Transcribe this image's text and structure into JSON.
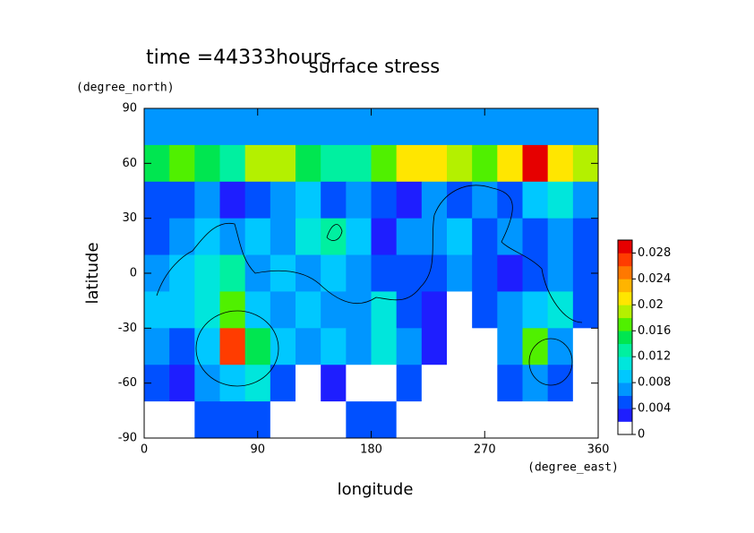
{
  "chart_data": {
    "type": "filled-contour",
    "title": "surface stress",
    "subtitle": "time =44333hours",
    "x_label": "longitude",
    "x_unit": "(degree_east)",
    "y_label": "latitude",
    "y_unit": "(degree_north)",
    "xlim": [
      0,
      360
    ],
    "xticks": [
      0,
      90,
      180,
      270,
      360
    ],
    "ylim": [
      -90,
      90
    ],
    "yticks": [
      -90,
      -60,
      -30,
      0,
      30,
      60,
      90
    ],
    "zlim": [
      0,
      0.03
    ],
    "zticks": [
      0,
      0.004,
      0.008,
      0.012,
      0.016,
      0.02,
      0.024,
      0.028
    ],
    "colors": [
      "#ffffff",
      "#1e1eff",
      "#0050ff",
      "#0096ff",
      "#00c8ff",
      "#00e6dc",
      "#00f0a0",
      "#00e650",
      "#50f000",
      "#b4f000",
      "#ffe600",
      "#ffb400",
      "#ff7800",
      "#ff3c00",
      "#e60000"
    ],
    "x": [
      10,
      30,
      50,
      70,
      90,
      110,
      130,
      150,
      170,
      190,
      210,
      230,
      250,
      270,
      290,
      310,
      330,
      350
    ],
    "y": [
      80,
      60,
      40,
      20,
      0,
      -20,
      -40,
      -60,
      -80
    ],
    "z": [
      [
        0.006,
        0.006,
        0.006,
        0.006,
        0.006,
        0.006,
        0.006,
        0.006,
        0.006,
        0.006,
        0.006,
        0.006,
        0.006,
        0.006,
        0.006,
        0.006,
        0.006,
        0.006
      ],
      [
        0.014,
        0.016,
        0.014,
        0.012,
        0.018,
        0.018,
        0.014,
        0.012,
        0.012,
        0.016,
        0.02,
        0.02,
        0.018,
        0.016,
        0.02,
        0.029,
        0.02,
        0.018
      ],
      [
        0.004,
        0.004,
        0.006,
        0.002,
        0.004,
        0.006,
        0.008,
        0.004,
        0.006,
        0.004,
        0.002,
        0.006,
        0.004,
        0.006,
        0.004,
        0.008,
        0.01,
        0.006
      ],
      [
        0.004,
        0.006,
        0.008,
        0.006,
        0.008,
        0.006,
        0.01,
        0.012,
        0.008,
        0.002,
        0.006,
        0.006,
        0.008,
        0.004,
        0.006,
        0.004,
        0.006,
        0.004
      ],
      [
        0.006,
        0.008,
        0.01,
        0.012,
        0.006,
        0.008,
        0.006,
        0.008,
        0.006,
        0.004,
        0.004,
        0.004,
        0.006,
        0.004,
        0.002,
        0.004,
        0.006,
        0.004
      ],
      [
        0.008,
        0.008,
        0.01,
        0.016,
        0.008,
        0.006,
        0.008,
        0.006,
        0.006,
        0.01,
        0.004,
        0.002,
        0.001,
        0.004,
        0.006,
        0.008,
        0.01,
        0.004
      ],
      [
        0.006,
        0.004,
        0.008,
        0.026,
        0.014,
        0.008,
        0.006,
        0.008,
        0.006,
        0.01,
        0.006,
        0.002,
        0.001,
        0.001,
        0.006,
        0.016,
        0.006,
        0.001
      ],
      [
        0.004,
        0.002,
        0.006,
        0.008,
        0.01,
        0.004,
        0.001,
        0.002,
        0.001,
        0.001,
        0.004,
        0.001,
        0.001,
        0.001,
        0.004,
        0.006,
        0.004,
        0.001
      ],
      [
        0.001,
        0.001,
        0.004,
        0.004,
        0.004,
        0.001,
        0.001,
        0.001,
        0.004,
        0.004,
        0.001,
        0.001,
        0.001,
        0.001,
        0.001,
        0.001,
        0.001,
        0.001
      ]
    ]
  }
}
